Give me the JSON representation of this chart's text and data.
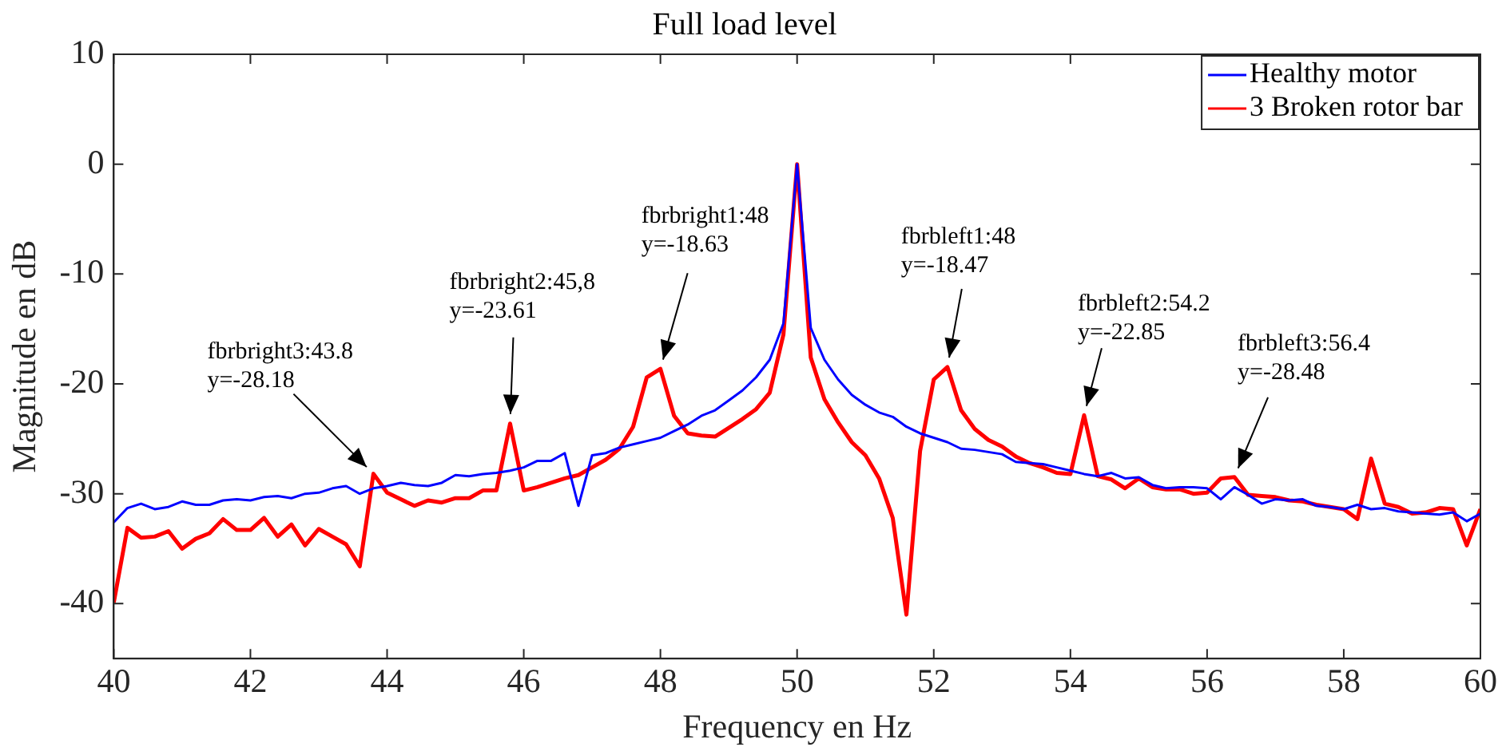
{
  "chart_data": {
    "type": "line",
    "title": "Full load level",
    "xlabel": "Frequency en Hz",
    "ylabel": "Magnitude en dB",
    "x": [
      40,
      40.2,
      40.4,
      40.6,
      40.8,
      41,
      41.2,
      41.4,
      41.6,
      41.8,
      42,
      42.2,
      42.4,
      42.6,
      42.8,
      43,
      43.2,
      43.4,
      43.6,
      43.8,
      44,
      44.2,
      44.4,
      44.6,
      44.8,
      45,
      45.2,
      45.4,
      45.6,
      45.8,
      46,
      46.2,
      46.4,
      46.6,
      46.8,
      47,
      47.2,
      47.4,
      47.6,
      47.8,
      48,
      48.2,
      48.4,
      48.6,
      48.8,
      49,
      49.2,
      49.4,
      49.6,
      49.8,
      50,
      50.2,
      50.4,
      50.6,
      50.8,
      51,
      51.2,
      51.4,
      51.6,
      51.8,
      52,
      52.2,
      52.4,
      52.6,
      52.8,
      53,
      53.2,
      53.4,
      53.6,
      53.8,
      54,
      54.2,
      54.4,
      54.6,
      54.8,
      55,
      55.2,
      55.4,
      55.6,
      55.8,
      56,
      56.2,
      56.4,
      56.6,
      56.8,
      57,
      57.2,
      57.4,
      57.6,
      57.8,
      58,
      58.2,
      58.4,
      58.6,
      58.8,
      59,
      59.2,
      59.4,
      59.6,
      59.8,
      60
    ],
    "series": [
      {
        "name": "Healthy motor",
        "color": "#0000ff",
        "values": [
          -32.6,
          -31.3,
          -30.9,
          -31.4,
          -31.2,
          -30.7,
          -31,
          -31,
          -30.6,
          -30.5,
          -30.6,
          -30.3,
          -30.2,
          -30.4,
          -30,
          -29.9,
          -29.5,
          -29.3,
          -30,
          -29.5,
          -29.3,
          -29,
          -29.2,
          -29.3,
          -29,
          -28.3,
          -28.4,
          -28.2,
          -28.1,
          -27.9,
          -27.6,
          -27,
          -27,
          -26.3,
          -31.1,
          -26.5,
          -26.3,
          -25.8,
          -25.5,
          -25.2,
          -24.9,
          -24.3,
          -23.7,
          -22.9,
          -22.4,
          -21.5,
          -20.6,
          -19.4,
          -17.8,
          -14.5,
          0,
          -14.9,
          -17.8,
          -19.6,
          -21,
          -21.9,
          -22.6,
          -23,
          -23.9,
          -24.5,
          -24.9,
          -25.3,
          -25.9,
          -26,
          -26.2,
          -26.4,
          -27.1,
          -27.2,
          -27.3,
          -27.6,
          -27.9,
          -28.2,
          -28.4,
          -28.1,
          -28.6,
          -28.5,
          -29.2,
          -29.5,
          -29.4,
          -29.4,
          -29.5,
          -30.5,
          -29.4,
          -30.1,
          -30.9,
          -30.5,
          -30.6,
          -30.5,
          -31.1,
          -31.2,
          -31.4,
          -31,
          -31.4,
          -31.3,
          -31.6,
          -31.7,
          -31.8,
          -31.9,
          -31.7,
          -32.5,
          -31.8
        ]
      },
      {
        "name": "3 Broken rotor bar",
        "color": "#ff0000",
        "values": [
          -39.9,
          -33.1,
          -34,
          -33.9,
          -33.4,
          -35,
          -34.1,
          -33.6,
          -32.3,
          -33.3,
          -33.3,
          -32.2,
          -33.9,
          -32.8,
          -34.7,
          -33.2,
          -33.9,
          -34.6,
          -36.6,
          -28.18,
          -29.9,
          -30.5,
          -31.1,
          -30.6,
          -30.8,
          -30.4,
          -30.4,
          -29.7,
          -29.7,
          -23.61,
          -29.7,
          -29.4,
          -29,
          -28.6,
          -28.3,
          -27.6,
          -26.9,
          -25.9,
          -23.9,
          -19.4,
          -18.63,
          -22.9,
          -24.5,
          -24.7,
          -24.8,
          -24,
          -23.2,
          -22.3,
          -20.8,
          -15.5,
          0,
          -17.6,
          -21.4,
          -23.5,
          -25.3,
          -26.5,
          -28.6,
          -32.2,
          -41,
          -26.1,
          -19.6,
          -18.47,
          -22.4,
          -24.1,
          -25.1,
          -25.7,
          -26.6,
          -27.2,
          -27.6,
          -28.1,
          -28.2,
          -22.85,
          -28.4,
          -28.7,
          -29.5,
          -28.6,
          -29.4,
          -29.6,
          -29.6,
          -30,
          -29.9,
          -28.6,
          -28.48,
          -30.1,
          -30.2,
          -30.3,
          -30.6,
          -30.7,
          -31,
          -31.2,
          -31.4,
          -32.3,
          -26.8,
          -30.9,
          -31.2,
          -31.8,
          -31.7,
          -31.3,
          -31.4,
          -34.7,
          -31.4
        ]
      }
    ],
    "xlim": [
      40,
      60
    ],
    "xticks": [
      40,
      42,
      44,
      46,
      48,
      50,
      52,
      54,
      56,
      58,
      60
    ],
    "ylim": [
      -45,
      10
    ],
    "yticks": [
      -40,
      -30,
      -20,
      -10,
      0,
      10
    ],
    "grid": false,
    "legend": "top right",
    "marker": "none",
    "line_style": "solid",
    "annotations": [
      {
        "text": "fbrbright3:43.8\ny=-28.18",
        "x": 43.8,
        "y": -28.18
      },
      {
        "text": "fbrbright2:45,8\ny=-23.61",
        "x": 45.8,
        "y": -23.61
      },
      {
        "text": "fbrbright1:48\ny=-18.63",
        "x": 48,
        "y": -18.63
      },
      {
        "text": "fbrbleft1:48\ny=-18.47",
        "x": 52.2,
        "y": -18.47
      },
      {
        "text": "fbrbleft2:54.2\ny=-22.85",
        "x": 54.2,
        "y": -22.85
      },
      {
        "text": "fbrbleft3:56.4\ny=-28.48",
        "x": 56.4,
        "y": -28.48
      }
    ]
  }
}
